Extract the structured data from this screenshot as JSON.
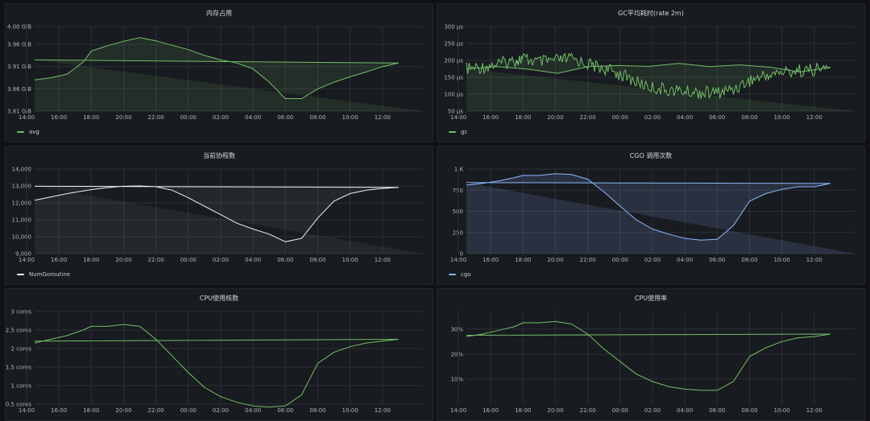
{
  "panels": [
    {
      "id": "memory",
      "title": "内存占用",
      "color": "#73bf69",
      "fill": "rgba(115,191,105,0.12)",
      "chart_data": {
        "type": "area",
        "ylabel": "",
        "yticks": [
          "3.81 GiB",
          "3.86 GiB",
          "3.91 GiB",
          "3.96 GiB",
          "4.00 GiB"
        ],
        "ylim": [
          3.81,
          4.0
        ],
        "xticks": [
          "16:00",
          "18:00",
          "20:00",
          "22:00",
          "00:00",
          "02:00",
          "04:00",
          "06:00",
          "08:00",
          "10:00",
          "12:00",
          "14:00"
        ],
        "series": [
          {
            "name": "avg",
            "x": [
              "14:30",
              "15:30",
              "16:30",
              "17:30",
              "18:00",
              "19:00",
              "20:00",
              "21:00",
              "22:00",
              "23:00",
              "00:00",
              "01:00",
              "02:00",
              "03:00",
              "04:00",
              "05:00",
              "06:00",
              "07:00",
              "08:00",
              "09:00",
              "10:00",
              "11:00",
              "12:00",
              "13:00",
              "14:30"
            ],
            "values": [
              3.88,
              3.885,
              3.893,
              3.92,
              3.945,
              3.957,
              3.967,
              3.975,
              3.968,
              3.958,
              3.948,
              3.935,
              3.925,
              3.918,
              3.905,
              3.875,
              3.838,
              3.838,
              3.86,
              3.875,
              3.887,
              3.898,
              3.91,
              3.918,
              3.925
            ]
          }
        ]
      }
    },
    {
      "id": "gc",
      "title": "GC平均耗时(rate 2m)",
      "color": "#73bf69",
      "fill": "rgba(115,191,105,0.12)",
      "chart_data": {
        "type": "area",
        "ylabel": "",
        "yticks": [
          "50 µs",
          "100 µs",
          "150 µs",
          "200 µs",
          "250 µs",
          "300 µs"
        ],
        "ylim": [
          50,
          300
        ],
        "xticks": [
          "16:00",
          "18:00",
          "20:00",
          "22:00",
          "00:00",
          "02:00",
          "04:00",
          "06:00",
          "08:00",
          "10:00",
          "12:00",
          "14:00"
        ],
        "series": [
          {
            "name": "gc",
            "x": [
              "14:30",
              "15:30",
              "16:30",
              "17:30",
              "18:00",
              "19:00",
              "20:00",
              "21:00",
              "22:00",
              "23:00",
              "00:00",
              "01:00",
              "02:00",
              "03:00",
              "04:00",
              "05:00",
              "06:00",
              "07:00",
              "08:00",
              "09:00",
              "10:00",
              "11:00",
              "12:00",
              "13:00",
              "14:30"
            ],
            "values": [
              175,
              180,
              190,
              200,
              205,
              195,
              200,
              205,
              190,
              175,
              160,
              135,
              120,
              112,
              108,
              105,
              104,
              115,
              140,
              155,
              165,
              170,
              172,
              178,
              175
            ]
          }
        ]
      }
    },
    {
      "id": "goroutine",
      "title": "当前协程数",
      "color": "#f2f2f2",
      "fill": "rgba(242,242,242,0.06)",
      "chart_data": {
        "type": "area",
        "ylabel": "",
        "yticks": [
          "9,000",
          "10,000",
          "11,000",
          "12,000",
          "13,000",
          "14,000"
        ],
        "ylim": [
          9000,
          14000
        ],
        "xticks": [
          "16:00",
          "18:00",
          "20:00",
          "22:00",
          "00:00",
          "02:00",
          "04:00",
          "06:00",
          "08:00",
          "10:00",
          "12:00",
          "14:00"
        ],
        "series": [
          {
            "name": "NumGoroutine",
            "x": [
              "14:30",
              "15:30",
              "16:30",
              "17:30",
              "18:00",
              "19:00",
              "20:00",
              "21:00",
              "22:00",
              "23:00",
              "00:00",
              "01:00",
              "02:00",
              "03:00",
              "04:00",
              "05:00",
              "06:00",
              "07:00",
              "08:00",
              "09:00",
              "10:00",
              "11:00",
              "12:00",
              "13:00",
              "14:30"
            ],
            "values": [
              12150,
              12350,
              12550,
              12700,
              12780,
              12900,
              12980,
              13000,
              12950,
              12750,
              12300,
              11800,
              11300,
              10800,
              10450,
              10150,
              9700,
              9900,
              11100,
              12100,
              12550,
              12750,
              12850,
              12920,
              12980
            ]
          }
        ]
      }
    },
    {
      "id": "cgo",
      "title": "CGO 调用次数",
      "color": "#8ab8ff",
      "fill": "rgba(138,184,255,0.15)",
      "chart_data": {
        "type": "area",
        "ylabel": "",
        "yticks": [
          "0",
          "250",
          "500",
          "750",
          "1 K"
        ],
        "ylim": [
          0,
          1000
        ],
        "xticks": [
          "16:00",
          "18:00",
          "20:00",
          "22:00",
          "00:00",
          "02:00",
          "04:00",
          "06:00",
          "08:00",
          "10:00",
          "12:00",
          "14:00"
        ],
        "series": [
          {
            "name": "cgo",
            "x": [
              "14:30",
              "15:30",
              "16:30",
              "17:30",
              "18:00",
              "19:00",
              "20:00",
              "21:00",
              "22:00",
              "23:00",
              "00:00",
              "01:00",
              "02:00",
              "03:00",
              "04:00",
              "05:00",
              "06:00",
              "07:00",
              "08:00",
              "09:00",
              "10:00",
              "11:00",
              "12:00",
              "13:00",
              "14:30"
            ],
            "values": [
              810,
              830,
              860,
              900,
              925,
              925,
              945,
              935,
              880,
              730,
              560,
              400,
              290,
              230,
              180,
              160,
              170,
              330,
              620,
              710,
              760,
              790,
              790,
              830,
              840
            ]
          }
        ]
      }
    },
    {
      "id": "cpu_cores",
      "title": "CPU使用核数",
      "color": "#73bf69",
      "fill": "rgba(0,0,0,0)",
      "chart_data": {
        "type": "line",
        "ylabel": "",
        "yticks": [
          "0.5 cores",
          "1 cores",
          "1.5 cores",
          "2 cores",
          "2.5 cores",
          "3 cores"
        ],
        "ylim": [
          0.5,
          3
        ],
        "xticks": [
          "16:00",
          "18:00",
          "20:00",
          "22:00",
          "00:00",
          "02:00",
          "04:00",
          "06:00",
          "08:00",
          "10:00",
          "12:00",
          "14:00"
        ],
        "series": [
          {
            "name": "",
            "x": [
              "14:30",
              "15:30",
              "16:30",
              "17:30",
              "18:00",
              "19:00",
              "20:00",
              "21:00",
              "22:00",
              "23:00",
              "00:00",
              "01:00",
              "02:00",
              "03:00",
              "04:00",
              "05:00",
              "06:00",
              "07:00",
              "08:00",
              "09:00",
              "10:00",
              "11:00",
              "12:00",
              "13:00",
              "14:30"
            ],
            "values": [
              2.15,
              2.25,
              2.35,
              2.5,
              2.6,
              2.6,
              2.65,
              2.6,
              2.25,
              1.8,
              1.35,
              0.95,
              0.7,
              0.55,
              0.45,
              0.42,
              0.45,
              0.75,
              1.6,
              1.9,
              2.05,
              2.15,
              2.2,
              2.25,
              2.2
            ]
          }
        ]
      }
    },
    {
      "id": "cpu_rate",
      "title": "CPU使用率",
      "color": "#73bf69",
      "fill": "rgba(0,0,0,0)",
      "chart_data": {
        "type": "line",
        "ylabel": "",
        "yticks": [
          "10%",
          "20%",
          "30%"
        ],
        "ylim": [
          0,
          37
        ],
        "xticks": [
          "16:00",
          "18:00",
          "20:00",
          "22:00",
          "00:00",
          "02:00",
          "04:00",
          "06:00",
          "08:00",
          "10:00",
          "12:00",
          "14:00"
        ],
        "series": [
          {
            "name": "",
            "x": [
              "14:30",
              "15:30",
              "16:30",
              "17:30",
              "18:00",
              "19:00",
              "20:00",
              "21:00",
              "22:00",
              "23:00",
              "00:00",
              "01:00",
              "02:00",
              "03:00",
              "04:00",
              "05:00",
              "06:00",
              "07:00",
              "08:00",
              "09:00",
              "10:00",
              "11:00",
              "12:00",
              "13:00",
              "14:30"
            ],
            "values": [
              27,
              28,
              29.5,
              31,
              32.5,
              32.5,
              33,
              32,
              28,
              22,
              17,
              12,
              9,
              7,
              6,
              5.5,
              5.5,
              9,
              19,
              22.5,
              25,
              26.5,
              27,
              28,
              27.5
            ]
          }
        ]
      }
    }
  ]
}
